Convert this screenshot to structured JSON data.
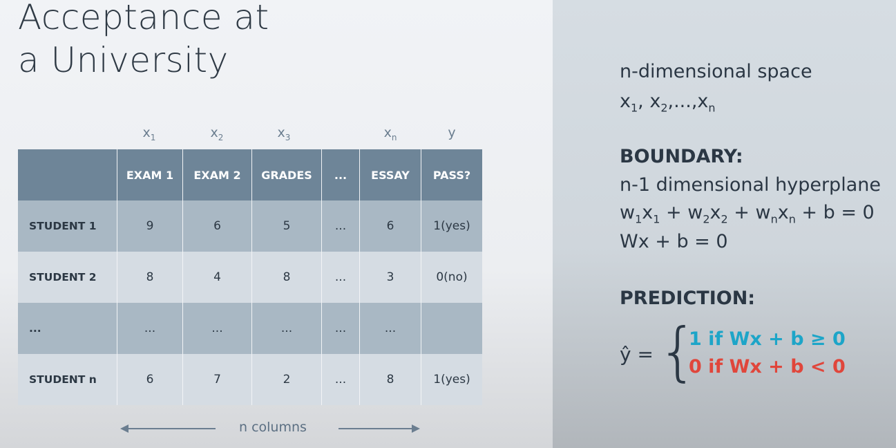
{
  "title": {
    "line1": "Acceptance at",
    "line2": "a University"
  },
  "variables": [
    {
      "base": "x",
      "sub": "1"
    },
    {
      "base": "x",
      "sub": "2"
    },
    {
      "base": "x",
      "sub": "3"
    },
    {
      "base": "x",
      "sub": "n"
    },
    {
      "base": "y",
      "sub": ""
    }
  ],
  "table": {
    "headers": [
      "",
      "EXAM 1",
      "EXAM 2",
      "GRADES",
      "...",
      "ESSAY",
      "PASS?"
    ],
    "rows": [
      [
        "STUDENT 1",
        "9",
        "6",
        "5",
        "...",
        "6",
        "1(yes)"
      ],
      [
        "STUDENT 2",
        "8",
        "4",
        "8",
        "...",
        "3",
        "0(no)"
      ],
      [
        "...",
        "...",
        "...",
        "...",
        "...",
        "...",
        ""
      ],
      [
        "STUDENT n",
        "6",
        "7",
        "2",
        "...",
        "8",
        "1(yes)"
      ]
    ]
  },
  "footer": {
    "label": "n columns"
  },
  "right": {
    "space_title": "n-dimensional space",
    "space_vars": [
      "x",
      "1",
      ", x",
      "2",
      ",...,x",
      "n"
    ],
    "boundary_heading": "BOUNDARY:",
    "boundary_desc": "n-1 dimensional hyperplane",
    "boundary_eq": [
      "w",
      "1",
      "x",
      "1",
      " + w",
      "2",
      "x",
      "2",
      " + w",
      "n",
      "x",
      "n",
      " + b = 0"
    ],
    "boundary_eq2": "Wx + b = 0",
    "prediction_heading": "PREDICTION:",
    "yhat": "ŷ =",
    "brace": "{",
    "case_positive": "1 if Wx + b ≥ 0",
    "case_negative": "0 if Wx + b < 0"
  },
  "colors": {
    "positive": "#1da5c8",
    "negative": "#e0463b",
    "header": "#6e8598"
  }
}
